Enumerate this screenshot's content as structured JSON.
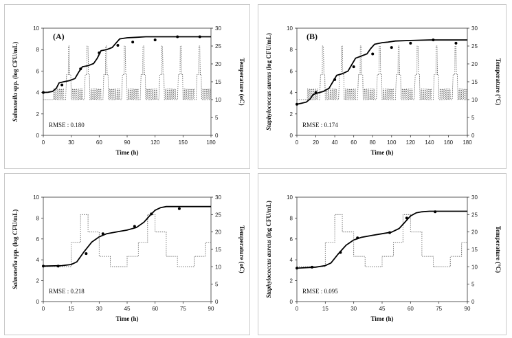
{
  "chart_data": [
    {
      "type": "line",
      "tag": "(A)",
      "rmse": "RMSE : 0.180",
      "xlabel": "Time (h)",
      "ylabel_organism": "Salmonella",
      "ylabel_rest": " spp. (log CFU/mL)",
      "y2label": "Temperature (oC)",
      "xlim": [
        0,
        180
      ],
      "xticks": [
        0,
        30,
        60,
        90,
        120,
        150,
        180
      ],
      "ylim": [
        0,
        10
      ],
      "yticks": [
        0,
        2,
        4,
        6,
        8,
        10
      ],
      "y2lim": [
        0,
        30
      ],
      "y2ticks": [
        0,
        5,
        10,
        15,
        20,
        25,
        30
      ],
      "series": [
        {
          "role": "predicted",
          "axis": "y",
          "x": [
            0,
            5,
            10,
            14,
            17,
            22,
            28,
            34,
            38,
            42,
            48,
            54,
            58,
            62,
            68,
            74,
            78,
            82,
            90,
            100,
            110,
            120,
            140,
            160,
            180
          ],
          "y": [
            4.0,
            4.02,
            4.1,
            4.4,
            4.9,
            5.0,
            5.1,
            5.3,
            5.9,
            6.4,
            6.5,
            6.7,
            7.2,
            7.9,
            8.0,
            8.2,
            8.6,
            9.0,
            9.1,
            9.15,
            9.2,
            9.2,
            9.2,
            9.2,
            9.2
          ]
        },
        {
          "role": "observed",
          "axis": "y",
          "x": [
            0,
            20,
            40,
            60,
            80,
            96,
            120,
            144,
            168
          ],
          "y": [
            4.0,
            4.7,
            6.2,
            7.7,
            8.4,
            8.7,
            8.9,
            9.2,
            9.2
          ]
        },
        {
          "role": "temperature",
          "axis": "y2",
          "cycle_period": 20,
          "cycle_offset": 10,
          "x": [
            0,
            1,
            1.2,
            1.8,
            2,
            3,
            3.2,
            3.8,
            4,
            5,
            5.2,
            5.8,
            6,
            7,
            7.2,
            7.8,
            8,
            9,
            9.2,
            9.8,
            10,
            11,
            11.2,
            11.8,
            12,
            14,
            15,
            16.8,
            17,
            18,
            18.5,
            19.5,
            20
          ],
          "y": [
            10,
            10,
            13,
            13,
            10,
            10,
            13,
            13,
            10,
            10,
            13,
            13,
            10,
            10,
            13,
            13,
            10,
            10,
            13,
            13,
            10,
            10,
            13,
            13,
            10,
            10,
            17,
            17,
            25,
            25,
            17,
            17,
            10
          ]
        }
      ]
    },
    {
      "type": "line",
      "tag": "(B)",
      "rmse": "RMSE : 0.174",
      "xlabel": "Time (h)",
      "ylabel_organism": "Staphylococcus aureus",
      "ylabel_rest": " (log CFU/mL)",
      "y2label": "Temperature (°C)",
      "xlim": [
        0,
        180
      ],
      "xticks": [
        0,
        20,
        40,
        60,
        80,
        100,
        120,
        140,
        160,
        180
      ],
      "ylim": [
        0,
        10
      ],
      "yticks": [
        0,
        2,
        4,
        6,
        8,
        10
      ],
      "y2lim": [
        0,
        30
      ],
      "y2ticks": [
        0,
        5,
        10,
        15,
        20,
        25,
        30
      ],
      "series": [
        {
          "role": "predicted",
          "axis": "y",
          "x": [
            0,
            5,
            10,
            14,
            17,
            22,
            28,
            34,
            38,
            42,
            48,
            54,
            58,
            62,
            68,
            74,
            78,
            82,
            90,
            96,
            100,
            104,
            120,
            140,
            180
          ],
          "y": [
            2.9,
            3.0,
            3.1,
            3.4,
            3.8,
            3.95,
            4.1,
            4.4,
            5.0,
            5.6,
            5.75,
            6.0,
            6.6,
            7.2,
            7.4,
            7.6,
            8.1,
            8.5,
            8.65,
            8.7,
            8.75,
            8.8,
            8.85,
            8.9,
            8.9
          ]
        },
        {
          "role": "observed",
          "axis": "y",
          "x": [
            0,
            20,
            40,
            60,
            80,
            100,
            120,
            144,
            168
          ],
          "y": [
            2.9,
            4.0,
            5.2,
            6.4,
            7.6,
            8.2,
            8.6,
            8.9,
            8.6
          ]
        },
        {
          "role": "temperature",
          "axis": "y2",
          "cycle_period": 20,
          "cycle_offset": 10,
          "x": [
            0,
            1,
            1.2,
            1.8,
            2,
            3,
            3.2,
            3.8,
            4,
            5,
            5.2,
            5.8,
            6,
            7,
            7.2,
            7.8,
            8,
            9,
            9.2,
            9.8,
            10,
            11,
            11.2,
            11.8,
            12,
            14,
            15,
            16.8,
            17,
            18,
            18.5,
            19.5,
            20
          ],
          "y": [
            10,
            10,
            13,
            13,
            10,
            10,
            13,
            13,
            10,
            10,
            13,
            13,
            10,
            10,
            13,
            13,
            10,
            10,
            13,
            13,
            10,
            10,
            13,
            13,
            10,
            10,
            17,
            17,
            25,
            25,
            17,
            17,
            10
          ]
        }
      ]
    },
    {
      "type": "line",
      "rmse": "RMSE : 0.218",
      "xlabel": "Time (h)",
      "ylabel_organism": "Salmonella",
      "ylabel_rest": " spp. (log CFU/mL)",
      "y2label": "Temperature (oC)",
      "xlim": [
        0,
        90
      ],
      "xticks": [
        0,
        15,
        30,
        45,
        60,
        75,
        90
      ],
      "ylim": [
        0,
        10
      ],
      "yticks": [
        0,
        2,
        4,
        6,
        8,
        10
      ],
      "y2lim": [
        0,
        30
      ],
      "y2ticks": [
        0,
        5,
        10,
        15,
        20,
        25,
        30
      ],
      "series": [
        {
          "role": "predicted",
          "axis": "y",
          "x": [
            0,
            10,
            15,
            18,
            22,
            26,
            30,
            34,
            40,
            45,
            50,
            54,
            57,
            60,
            63,
            66,
            70,
            80,
            90
          ],
          "y": [
            3.4,
            3.45,
            3.55,
            3.8,
            4.8,
            5.7,
            6.2,
            6.5,
            6.7,
            6.85,
            7.1,
            7.6,
            8.2,
            8.75,
            9.0,
            9.1,
            9.1,
            9.1,
            9.1
          ]
        },
        {
          "role": "observed",
          "axis": "y",
          "x": [
            0,
            8,
            23,
            32,
            49,
            58,
            73
          ],
          "y": [
            3.4,
            3.4,
            4.6,
            6.5,
            7.2,
            8.4,
            8.9
          ]
        },
        {
          "role": "temperature",
          "axis": "y2",
          "x": [
            0,
            15,
            15,
            20,
            20,
            24,
            24,
            30,
            30,
            36,
            36,
            45,
            45,
            51,
            51,
            56,
            56,
            60,
            60,
            66,
            66,
            72,
            72,
            81,
            81,
            87,
            87,
            90
          ],
          "y": [
            10,
            10,
            17,
            17,
            25,
            25,
            20,
            20,
            13,
            13,
            10,
            10,
            13,
            13,
            17,
            17,
            25,
            25,
            20,
            20,
            13,
            13,
            10,
            10,
            13,
            13,
            17,
            17
          ]
        }
      ]
    },
    {
      "type": "line",
      "rmse": "RMSE : 0.095",
      "xlabel": "Time (h)",
      "ylabel_organism": "Staphylococcus aureus",
      "ylabel_rest": " (log CFU/mL)",
      "y2label": "Temperature (°C)",
      "xlim": [
        0,
        90
      ],
      "xticks": [
        0,
        15,
        30,
        45,
        60,
        75,
        90
      ],
      "ylim": [
        0,
        10
      ],
      "yticks": [
        0,
        2,
        4,
        6,
        8,
        10
      ],
      "y2lim": [
        0,
        30
      ],
      "y2ticks": [
        0,
        5,
        10,
        15,
        20,
        25,
        30
      ],
      "series": [
        {
          "role": "predicted",
          "axis": "y",
          "x": [
            0,
            10,
            15,
            18,
            22,
            26,
            30,
            34,
            40,
            45,
            50,
            54,
            57,
            60,
            63,
            66,
            70,
            80,
            90
          ],
          "y": [
            3.2,
            3.3,
            3.45,
            3.7,
            4.6,
            5.4,
            5.9,
            6.15,
            6.35,
            6.5,
            6.65,
            7.0,
            7.6,
            8.2,
            8.5,
            8.6,
            8.65,
            8.65,
            8.65
          ]
        },
        {
          "role": "observed",
          "axis": "y",
          "x": [
            0,
            8,
            23,
            32,
            49,
            58,
            73
          ],
          "y": [
            3.2,
            3.3,
            4.7,
            6.1,
            6.6,
            8.0,
            8.6
          ]
        },
        {
          "role": "temperature",
          "axis": "y2",
          "x": [
            0,
            15,
            15,
            20,
            20,
            24,
            24,
            30,
            30,
            36,
            36,
            45,
            45,
            51,
            51,
            56,
            56,
            60,
            60,
            66,
            66,
            72,
            72,
            81,
            81,
            87,
            87,
            90
          ],
          "y": [
            10,
            10,
            17,
            17,
            25,
            25,
            20,
            20,
            13,
            13,
            10,
            10,
            13,
            13,
            17,
            17,
            25,
            25,
            20,
            20,
            13,
            13,
            10,
            10,
            13,
            13,
            17,
            17
          ]
        }
      ]
    }
  ]
}
